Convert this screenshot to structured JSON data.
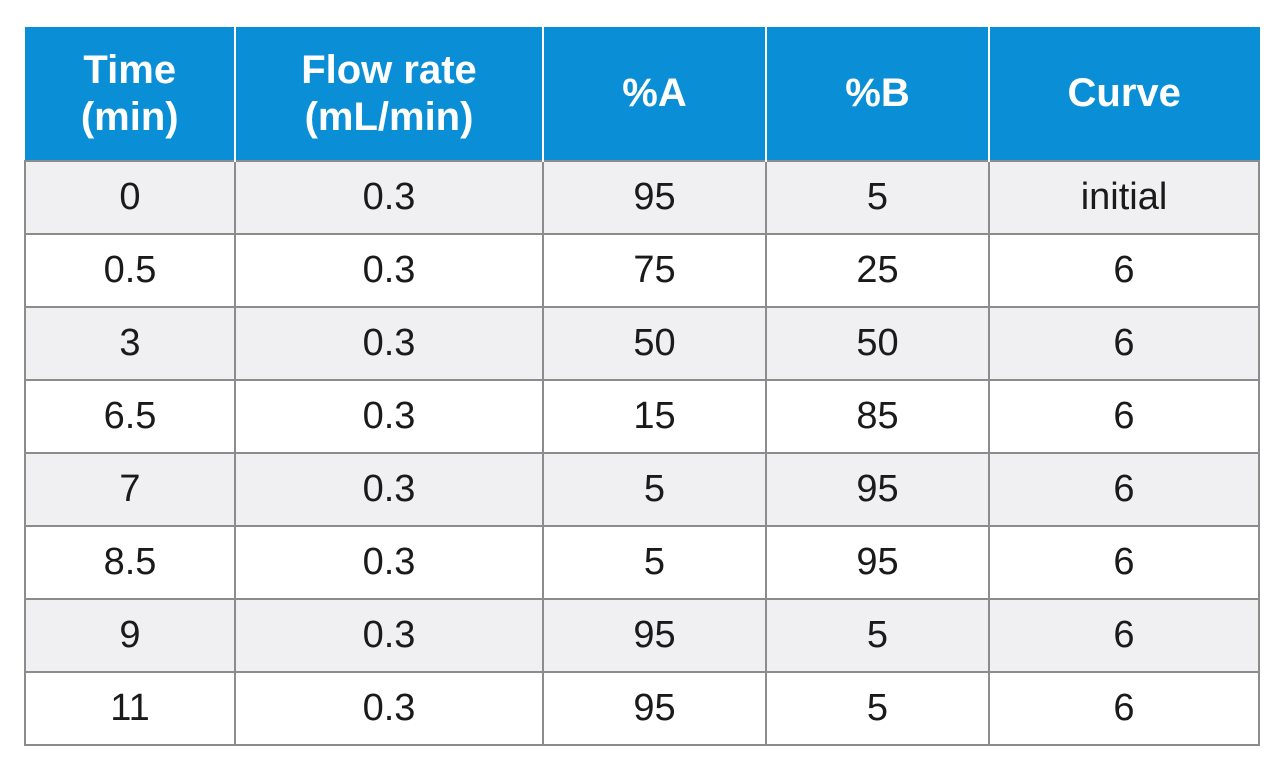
{
  "table": {
    "headers": [
      [
        "Time",
        "(min)"
      ],
      [
        "Flow rate",
        "(mL/min)"
      ],
      [
        "%A"
      ],
      [
        "%B"
      ],
      [
        "Curve"
      ]
    ],
    "rows": [
      [
        "0",
        "0.3",
        "95",
        "5",
        "initial"
      ],
      [
        "0.5",
        "0.3",
        "75",
        "25",
        "6"
      ],
      [
        "3",
        "0.3",
        "50",
        "50",
        "6"
      ],
      [
        "6.5",
        "0.3",
        "15",
        "85",
        "6"
      ],
      [
        "7",
        "0.3",
        "5",
        "95",
        "6"
      ],
      [
        "8.5",
        "0.3",
        "5",
        "95",
        "6"
      ],
      [
        "9",
        "0.3",
        "95",
        "5",
        "6"
      ],
      [
        "11",
        "0.3",
        "95",
        "5",
        "6"
      ]
    ]
  },
  "colors": {
    "header_bg": "#0a8fd6",
    "header_text": "#ffffff",
    "row_alt_bg": "#f0f0f2",
    "border": "#8c8c8c"
  }
}
